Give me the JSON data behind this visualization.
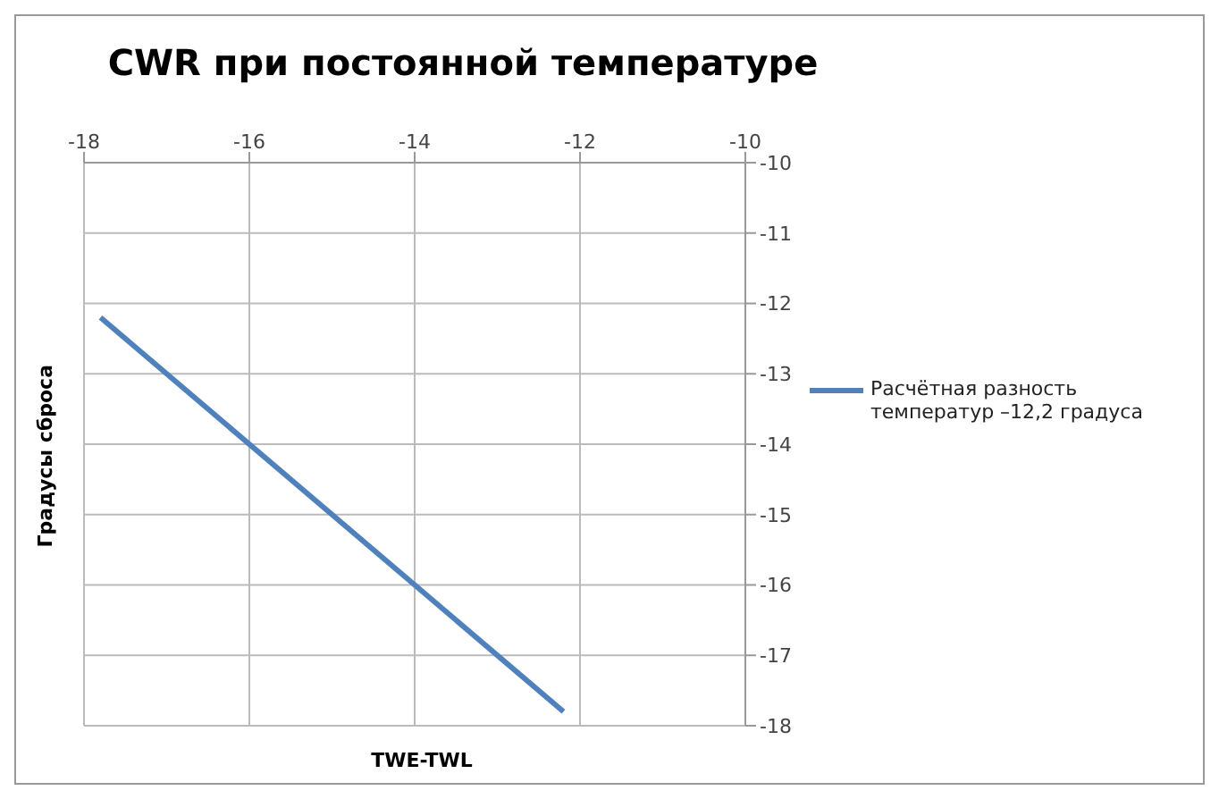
{
  "chart_data": {
    "type": "line",
    "title": "CWR при постоянной температуре",
    "xlabel": "TWE-TWL",
    "ylabel": "Градусы сброса",
    "x": [
      -17.8,
      -12.2
    ],
    "series": [
      {
        "name": "Расчётная разность температур –12,2 градуса",
        "color": "#4f81bd",
        "values": [
          -12.2,
          -17.8
        ]
      }
    ],
    "xlim": [
      -18,
      -10
    ],
    "xticks": [
      -18,
      -16,
      -14,
      -12,
      -10
    ],
    "ylim": [
      -18,
      -10
    ],
    "yticks": [
      -18,
      -17,
      -16,
      -15,
      -14,
      -13,
      -12,
      -11,
      -10
    ],
    "grid": true,
    "legend": "right",
    "marker": "none",
    "line_style": "solid"
  }
}
